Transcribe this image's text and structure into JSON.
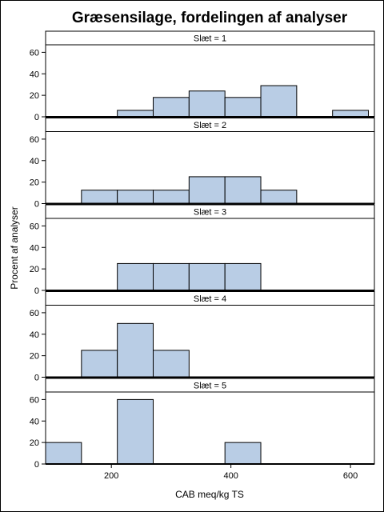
{
  "chart_data": {
    "type": "histogram-panel",
    "title": "Græsensilage, fordelingen af analyser",
    "xlabel": "CAB meq/kg TS",
    "ylabel": "Procent af analyser",
    "xlim": [
      90,
      640
    ],
    "ylim": [
      0,
      67
    ],
    "x_ticks": [
      200,
      400,
      600
    ],
    "y_ticks": [
      0,
      20,
      40,
      60
    ],
    "bin_edges": [
      90,
      150,
      210,
      270,
      330,
      390,
      450,
      510,
      570,
      630
    ],
    "bar_color": "#b9cde5",
    "panels": [
      {
        "label": "Slæt = 1",
        "values": [
          0,
          0,
          6,
          18,
          24,
          18,
          29,
          0,
          6
        ]
      },
      {
        "label": "Slæt = 2",
        "values": [
          0,
          12.5,
          12.5,
          12.5,
          25,
          25,
          12.5,
          0,
          0
        ]
      },
      {
        "label": "Slæt = 3",
        "values": [
          0,
          0,
          25,
          25,
          25,
          25,
          0,
          0,
          0
        ]
      },
      {
        "label": "Slæt = 4",
        "values": [
          0,
          25,
          50,
          25,
          0,
          0,
          0,
          0,
          0
        ]
      },
      {
        "label": "Slæt = 5",
        "values": [
          20,
          0,
          60,
          0,
          0,
          20,
          0,
          0,
          0
        ]
      }
    ]
  }
}
